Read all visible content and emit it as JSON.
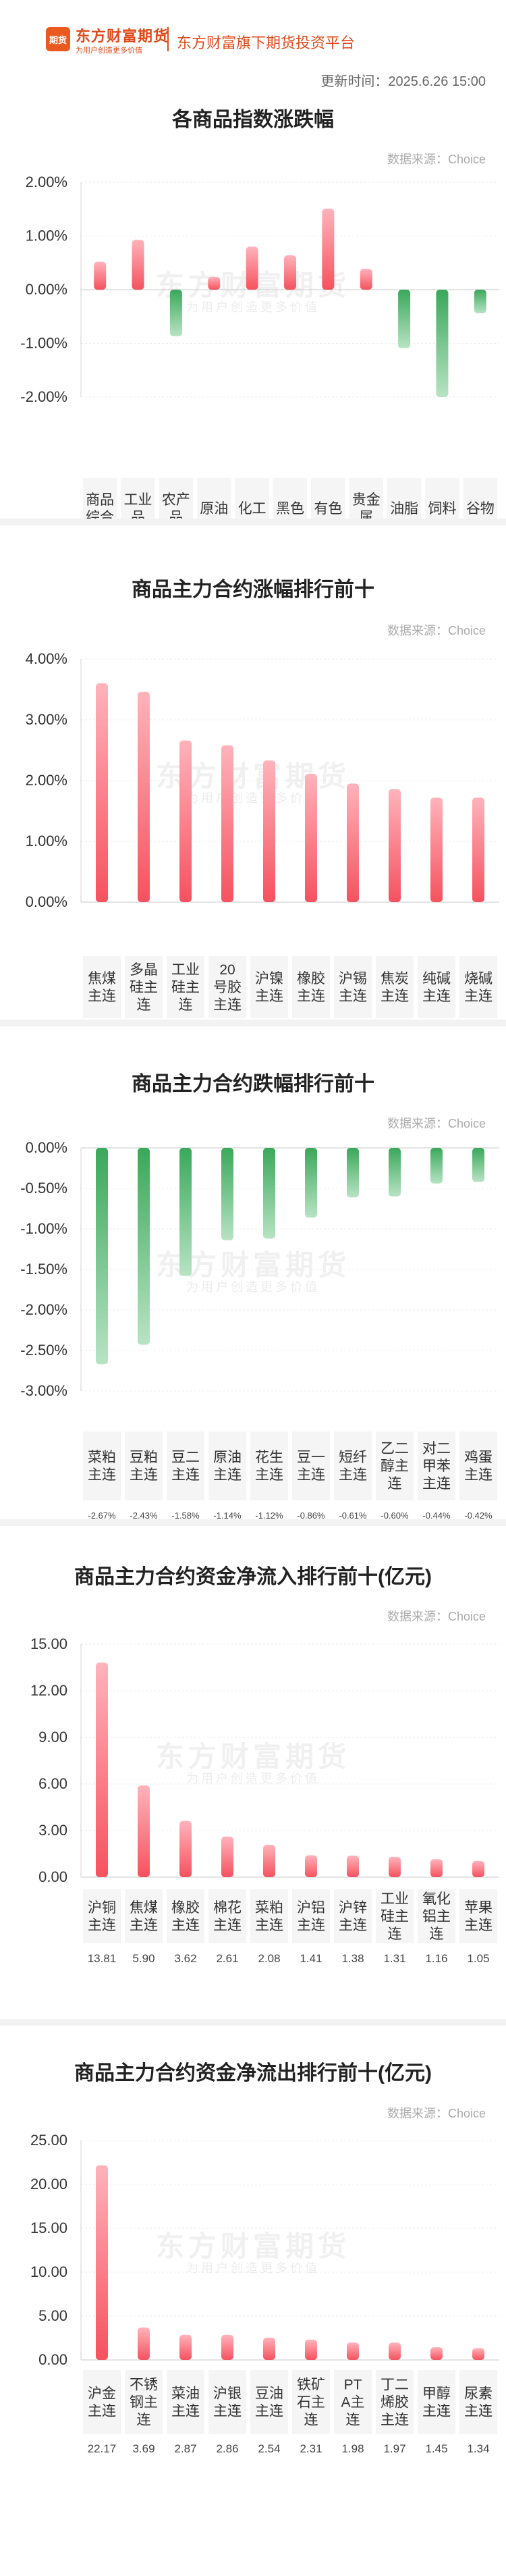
{
  "header": {
    "logo_text": "期货",
    "brand_name": "东方财富期货",
    "brand_slogan": "为用户创造更多价值",
    "platform": "东方财富旗下期货投资平台",
    "update_time": "更新时间：2025.6.26 15:00"
  },
  "watermark": {
    "main": "东方财富期货",
    "sub": "为用户创造更多价值"
  },
  "colors": {
    "up": "#f5525f",
    "down": "#3aa85a",
    "label_bg": "#f5f5f5"
  },
  "charts": [
    {
      "title": "各商品指数涨跌幅",
      "source": "数据来源：Choice",
      "chart_data": {
        "type": "bar",
        "categories": [
          "商品综合",
          "工业品",
          "农产品",
          "原油",
          "化工",
          "黑色",
          "有色",
          "贵金属",
          "油脂",
          "饲料",
          "谷物"
        ],
        "values": [
          0.52,
          0.93,
          -0.87,
          0.24,
          0.8,
          0.64,
          1.51,
          0.39,
          -1.09,
          -2.0,
          -0.44
        ],
        "value_labels": [
          "0.52%",
          "0.93%",
          "-0.87%",
          "0.24%",
          "0.80%",
          "0.64%",
          "1.51%",
          "0.39%",
          "-1.09%",
          "-2.00%",
          "-0.44%"
        ],
        "yticks": [
          "2.00%",
          "1.00%",
          "0.00%",
          "-1.00%",
          "-2.00%"
        ],
        "ylim": [
          -2,
          2
        ]
      }
    },
    {
      "title": "商品主力合约涨幅排行前十",
      "source": "数据来源：Choice",
      "chart_data": {
        "type": "bar",
        "categories": [
          "焦煤主连",
          "多晶硅主连",
          "工业硅主连",
          "20号胶主连",
          "沪镍主连",
          "橡胶主连",
          "沪锡主连",
          "焦炭主连",
          "纯碱主连",
          "烧碱主连"
        ],
        "values": [
          3.6,
          3.46,
          2.66,
          2.58,
          2.33,
          2.11,
          1.95,
          1.86,
          1.72,
          1.72
        ],
        "value_labels": [
          "3.60%",
          "3.46%",
          "2.66%",
          "2.58%",
          "2.33%",
          "2.11%",
          "1.95%",
          "1.86%",
          "1.72%",
          "1.72%"
        ],
        "yticks": [
          "4.00%",
          "3.00%",
          "2.00%",
          "1.00%",
          "0.00%"
        ],
        "ylim": [
          0,
          4
        ]
      }
    },
    {
      "title": "商品主力合约跌幅排行前十",
      "source": "数据来源：Choice",
      "chart_data": {
        "type": "bar",
        "categories": [
          "菜粕主连",
          "豆粕主连",
          "豆二主连",
          "原油主连",
          "花生主连",
          "豆一主连",
          "短纤主连",
          "乙二醇主连",
          "对二甲苯主连",
          "鸡蛋主连"
        ],
        "values": [
          -2.67,
          -2.43,
          -1.58,
          -1.14,
          -1.12,
          -0.86,
          -0.61,
          -0.6,
          -0.44,
          -0.42
        ],
        "value_labels": [
          "-2.67%",
          "-2.43%",
          "-1.58%",
          "-1.14%",
          "-1.12%",
          "-0.86%",
          "-0.61%",
          "-0.60%",
          "-0.44%",
          "-0.42%"
        ],
        "yticks": [
          "0.00%",
          "-0.50%",
          "-1.00%",
          "-1.50%",
          "-2.00%",
          "-2.50%",
          "-3.00%"
        ],
        "ylim": [
          -3,
          0
        ]
      }
    },
    {
      "title": "商品主力合约资金净流入排行前十(亿元)",
      "source": "数据来源：Choice",
      "chart_data": {
        "type": "bar",
        "categories": [
          "沪铜主连",
          "焦煤主连",
          "橡胶主连",
          "棉花主连",
          "菜粕主连",
          "沪铝主连",
          "沪锌主连",
          "工业硅主连",
          "氧化铝主连",
          "苹果主连"
        ],
        "values": [
          13.81,
          5.9,
          3.62,
          2.61,
          2.08,
          1.41,
          1.38,
          1.31,
          1.16,
          1.05
        ],
        "value_labels": [
          "13.81",
          "5.90",
          "3.62",
          "2.61",
          "2.08",
          "1.41",
          "1.38",
          "1.31",
          "1.16",
          "1.05"
        ],
        "yticks": [
          "15.00",
          "12.00",
          "9.00",
          "6.00",
          "3.00",
          "0.00"
        ],
        "ylim": [
          0,
          15
        ]
      }
    },
    {
      "title": "商品主力合约资金净流出排行前十(亿元)",
      "source": "数据来源：Choice",
      "chart_data": {
        "type": "bar",
        "categories": [
          "沪金主连",
          "不锈钢主连",
          "菜油主连",
          "沪银主连",
          "豆油主连",
          "铁矿石主连",
          "PTA主连",
          "丁二烯胶主连",
          "甲醇主连",
          "尿素主连"
        ],
        "values": [
          22.17,
          3.69,
          2.87,
          2.86,
          2.54,
          2.31,
          1.98,
          1.97,
          1.45,
          1.34
        ],
        "value_labels": [
          "22.17",
          "3.69",
          "2.87",
          "2.86",
          "2.54",
          "2.31",
          "1.98",
          "1.97",
          "1.45",
          "1.34"
        ],
        "yticks": [
          "25.00",
          "20.00",
          "15.00",
          "10.00",
          "5.00",
          "0.00"
        ],
        "ylim": [
          0,
          25
        ]
      }
    }
  ]
}
